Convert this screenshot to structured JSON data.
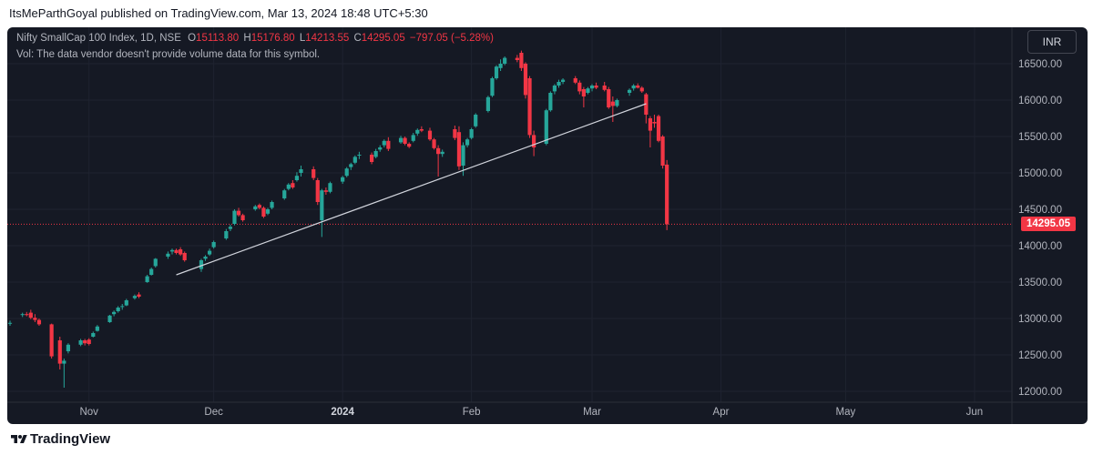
{
  "publisher": "ItsMeParthGoyal published on TradingView.com, Mar 13, 2024 18:48 UTC+5:30",
  "legend": {
    "symbol": "Nifty SmallCap 100 Index, 1D, NSE",
    "o_label": "O",
    "o_value": "15113.80",
    "h_label": "H",
    "h_value": "15176.80",
    "l_label": "L",
    "l_value": "14213.55",
    "c_label": "C",
    "c_value": "14295.05",
    "change": "−797.05 (−5.28%)"
  },
  "volume_note": "Vol: The data vendor doesn't provide volume data for this symbol.",
  "currency_button": "INR",
  "last_price_label": "14295.05",
  "brand": "TradingView",
  "colors": {
    "background": "#151924",
    "up": "#26a69a",
    "down": "#f23645",
    "grid": "#1f2330",
    "axis_text": "#b2b5be",
    "trendline": "#d1d4dc"
  },
  "chart_data": {
    "type": "candlestick",
    "title": "",
    "xlabel": "",
    "ylabel": "",
    "y_ticks": [
      12000,
      12500,
      13000,
      13500,
      14000,
      14500,
      15000,
      15500,
      16000,
      16500
    ],
    "y_tick_labels": [
      "12000.00",
      "12500.00",
      "13000.00",
      "13500.00",
      "14000.00",
      "14500.00",
      "15000.00",
      "15500.00",
      "16000.00",
      "16500.00"
    ],
    "ylim": [
      11900,
      16950
    ],
    "x_labels": [
      {
        "label": "Nov",
        "date": "2023-11-01"
      },
      {
        "label": "Dec",
        "date": "2023-12-01"
      },
      {
        "label": "2024",
        "date": "2024-01-01"
      },
      {
        "label": "Feb",
        "date": "2024-02-01"
      },
      {
        "label": "Mar",
        "date": "2024-03-01"
      },
      {
        "label": "Apr",
        "date": "2024-04-01"
      },
      {
        "label": "May",
        "date": "2024-05-01"
      },
      {
        "label": "Jun",
        "date": "2024-06-01"
      }
    ],
    "xlim": [
      "2023-10-13",
      "2024-06-10"
    ],
    "last_price": 14295.05,
    "trendline": {
      "start": {
        "date": "2023-11-22",
        "value": 13600
      },
      "end": {
        "date": "2024-03-14",
        "value": 15950
      }
    },
    "candles": [
      {
        "d": "2023-10-13",
        "o": 12930,
        "h": 12970,
        "l": 12900,
        "c": 12940
      },
      {
        "d": "2023-10-16",
        "o": 13050,
        "h": 13080,
        "l": 13020,
        "c": 13060
      },
      {
        "d": "2023-10-17",
        "o": 13060,
        "h": 13090,
        "l": 13030,
        "c": 13050
      },
      {
        "d": "2023-10-18",
        "o": 13080,
        "h": 13120,
        "l": 12990,
        "c": 13010
      },
      {
        "d": "2023-10-19",
        "o": 13010,
        "h": 13060,
        "l": 12950,
        "c": 12980
      },
      {
        "d": "2023-10-20",
        "o": 12980,
        "h": 13000,
        "l": 12900,
        "c": 12920
      },
      {
        "d": "2023-10-23",
        "o": 12920,
        "h": 12930,
        "l": 12450,
        "c": 12480
      },
      {
        "d": "2023-10-25",
        "o": 12700,
        "h": 12750,
        "l": 12300,
        "c": 12380
      },
      {
        "d": "2023-10-26",
        "o": 12380,
        "h": 12450,
        "l": 12050,
        "c": 12420
      },
      {
        "d": "2023-10-27",
        "o": 12550,
        "h": 12660,
        "l": 12520,
        "c": 12640
      },
      {
        "d": "2023-10-30",
        "o": 12640,
        "h": 12720,
        "l": 12620,
        "c": 12700
      },
      {
        "d": "2023-10-31",
        "o": 12700,
        "h": 12720,
        "l": 12630,
        "c": 12660
      },
      {
        "d": "2023-11-01",
        "o": 12710,
        "h": 12730,
        "l": 12630,
        "c": 12650
      },
      {
        "d": "2023-11-02",
        "o": 12750,
        "h": 12820,
        "l": 12740,
        "c": 12800
      },
      {
        "d": "2023-11-03",
        "o": 12830,
        "h": 12910,
        "l": 12820,
        "c": 12890
      },
      {
        "d": "2023-11-06",
        "o": 12950,
        "h": 13050,
        "l": 12940,
        "c": 13040
      },
      {
        "d": "2023-11-07",
        "o": 13060,
        "h": 13110,
        "l": 13030,
        "c": 13090
      },
      {
        "d": "2023-11-08",
        "o": 13100,
        "h": 13170,
        "l": 13080,
        "c": 13150
      },
      {
        "d": "2023-11-09",
        "o": 13160,
        "h": 13200,
        "l": 13120,
        "c": 13170
      },
      {
        "d": "2023-11-10",
        "o": 13180,
        "h": 13270,
        "l": 13170,
        "c": 13250
      },
      {
        "d": "2023-11-12",
        "o": 13280,
        "h": 13330,
        "l": 13260,
        "c": 13310
      },
      {
        "d": "2023-11-13",
        "o": 13330,
        "h": 13360,
        "l": 13280,
        "c": 13300
      },
      {
        "d": "2023-11-15",
        "o": 13500,
        "h": 13600,
        "l": 13490,
        "c": 13580
      },
      {
        "d": "2023-11-16",
        "o": 13600,
        "h": 13700,
        "l": 13590,
        "c": 13680
      },
      {
        "d": "2023-11-17",
        "o": 13720,
        "h": 13830,
        "l": 13700,
        "c": 13820
      },
      {
        "d": "2023-11-20",
        "o": 13850,
        "h": 13920,
        "l": 13820,
        "c": 13890
      },
      {
        "d": "2023-11-21",
        "o": 13920,
        "h": 13960,
        "l": 13880,
        "c": 13940
      },
      {
        "d": "2023-11-22",
        "o": 13940,
        "h": 13960,
        "l": 13880,
        "c": 13900
      },
      {
        "d": "2023-11-23",
        "o": 13950,
        "h": 13980,
        "l": 13860,
        "c": 13880
      },
      {
        "d": "2023-11-24",
        "o": 13900,
        "h": 13920,
        "l": 13780,
        "c": 13800
      },
      {
        "d": "2023-11-28",
        "o": 13680,
        "h": 13820,
        "l": 13640,
        "c": 13800
      },
      {
        "d": "2023-11-29",
        "o": 13820,
        "h": 13870,
        "l": 13790,
        "c": 13850
      },
      {
        "d": "2023-11-30",
        "o": 13880,
        "h": 13960,
        "l": 13860,
        "c": 13930
      },
      {
        "d": "2023-12-01",
        "o": 13980,
        "h": 14070,
        "l": 13960,
        "c": 14050
      },
      {
        "d": "2023-12-04",
        "o": 14100,
        "h": 14230,
        "l": 14080,
        "c": 14200
      },
      {
        "d": "2023-12-05",
        "o": 14230,
        "h": 14290,
        "l": 14200,
        "c": 14260
      },
      {
        "d": "2023-12-06",
        "o": 14300,
        "h": 14500,
        "l": 14280,
        "c": 14480
      },
      {
        "d": "2023-12-07",
        "o": 14480,
        "h": 14520,
        "l": 14400,
        "c": 14420
      },
      {
        "d": "2023-12-08",
        "o": 14420,
        "h": 14440,
        "l": 14330,
        "c": 14350
      },
      {
        "d": "2023-12-11",
        "o": 14500,
        "h": 14560,
        "l": 14480,
        "c": 14540
      },
      {
        "d": "2023-12-12",
        "o": 14560,
        "h": 14580,
        "l": 14500,
        "c": 14520
      },
      {
        "d": "2023-12-13",
        "o": 14520,
        "h": 14540,
        "l": 14380,
        "c": 14400
      },
      {
        "d": "2023-12-14",
        "o": 14440,
        "h": 14520,
        "l": 14420,
        "c": 14500
      },
      {
        "d": "2023-12-15",
        "o": 14520,
        "h": 14620,
        "l": 14500,
        "c": 14600
      },
      {
        "d": "2023-12-18",
        "o": 14650,
        "h": 14780,
        "l": 14630,
        "c": 14760
      },
      {
        "d": "2023-12-19",
        "o": 14780,
        "h": 14860,
        "l": 14760,
        "c": 14840
      },
      {
        "d": "2023-12-20",
        "o": 14860,
        "h": 14900,
        "l": 14780,
        "c": 14800
      },
      {
        "d": "2023-12-21",
        "o": 14900,
        "h": 15010,
        "l": 14880,
        "c": 14960
      },
      {
        "d": "2023-12-22",
        "o": 15000,
        "h": 15100,
        "l": 14950,
        "c": 15050
      },
      {
        "d": "2023-12-25",
        "o": 15050,
        "h": 15090,
        "l": 14900,
        "c": 14930
      },
      {
        "d": "2023-12-26",
        "o": 14900,
        "h": 14930,
        "l": 14560,
        "c": 14600
      },
      {
        "d": "2023-12-27",
        "o": 14350,
        "h": 14780,
        "l": 14120,
        "c": 14760
      },
      {
        "d": "2023-12-28",
        "o": 14760,
        "h": 14800,
        "l": 14700,
        "c": 14740
      },
      {
        "d": "2023-12-29",
        "o": 14740,
        "h": 14880,
        "l": 14720,
        "c": 14860
      },
      {
        "d": "2024-01-01",
        "o": 14880,
        "h": 14960,
        "l": 14850,
        "c": 14940
      },
      {
        "d": "2024-01-02",
        "o": 14960,
        "h": 15080,
        "l": 14940,
        "c": 15060
      },
      {
        "d": "2024-01-03",
        "o": 15080,
        "h": 15140,
        "l": 15040,
        "c": 15120
      },
      {
        "d": "2024-01-04",
        "o": 15140,
        "h": 15240,
        "l": 15120,
        "c": 15220
      },
      {
        "d": "2024-01-05",
        "o": 15240,
        "h": 15290,
        "l": 15190,
        "c": 15250
      },
      {
        "d": "2024-01-08",
        "o": 15250,
        "h": 15280,
        "l": 15120,
        "c": 15150
      },
      {
        "d": "2024-01-09",
        "o": 15220,
        "h": 15330,
        "l": 15200,
        "c": 15300
      },
      {
        "d": "2024-01-10",
        "o": 15320,
        "h": 15380,
        "l": 15290,
        "c": 15350
      },
      {
        "d": "2024-01-11",
        "o": 15380,
        "h": 15460,
        "l": 15350,
        "c": 15440
      },
      {
        "d": "2024-01-12",
        "o": 15440,
        "h": 15490,
        "l": 15300,
        "c": 15330
      },
      {
        "d": "2024-01-15",
        "o": 15420,
        "h": 15510,
        "l": 15400,
        "c": 15480
      },
      {
        "d": "2024-01-16",
        "o": 15480,
        "h": 15500,
        "l": 15380,
        "c": 15400
      },
      {
        "d": "2024-01-17",
        "o": 15400,
        "h": 15420,
        "l": 15340,
        "c": 15360
      },
      {
        "d": "2024-01-18",
        "o": 15440,
        "h": 15550,
        "l": 15420,
        "c": 15520
      },
      {
        "d": "2024-01-19",
        "o": 15540,
        "h": 15610,
        "l": 15510,
        "c": 15590
      },
      {
        "d": "2024-01-20",
        "o": 15600,
        "h": 15640,
        "l": 15560,
        "c": 15580
      },
      {
        "d": "2024-01-22",
        "o": 15580,
        "h": 15620,
        "l": 15440,
        "c": 15460
      },
      {
        "d": "2024-01-23",
        "o": 15460,
        "h": 15480,
        "l": 15320,
        "c": 15340
      },
      {
        "d": "2024-01-24",
        "o": 15340,
        "h": 15380,
        "l": 14950,
        "c": 15260
      },
      {
        "d": "2024-01-25",
        "o": 15260,
        "h": 15320,
        "l": 15220,
        "c": 15290
      },
      {
        "d": "2024-01-28",
        "o": 15600,
        "h": 15650,
        "l": 15450,
        "c": 15480
      },
      {
        "d": "2024-01-29",
        "o": 15560,
        "h": 15640,
        "l": 15040,
        "c": 15090
      },
      {
        "d": "2024-01-30",
        "o": 15100,
        "h": 15420,
        "l": 14960,
        "c": 15380
      },
      {
        "d": "2024-01-31",
        "o": 15380,
        "h": 15480,
        "l": 15350,
        "c": 15460
      },
      {
        "d": "2024-02-01",
        "o": 15480,
        "h": 15620,
        "l": 15460,
        "c": 15600
      },
      {
        "d": "2024-02-02",
        "o": 15640,
        "h": 15820,
        "l": 15620,
        "c": 15800
      },
      {
        "d": "2024-02-05",
        "o": 15850,
        "h": 16060,
        "l": 15830,
        "c": 16040
      },
      {
        "d": "2024-02-06",
        "o": 16060,
        "h": 16320,
        "l": 16040,
        "c": 16300
      },
      {
        "d": "2024-02-07",
        "o": 16300,
        "h": 16480,
        "l": 16280,
        "c": 16460
      },
      {
        "d": "2024-02-08",
        "o": 16440,
        "h": 16560,
        "l": 16400,
        "c": 16500
      },
      {
        "d": "2024-02-09",
        "o": 16500,
        "h": 16600,
        "l": 16480,
        "c": 16580
      },
      {
        "d": "2024-02-12",
        "o": 16580,
        "h": 16620,
        "l": 16520,
        "c": 16550
      },
      {
        "d": "2024-02-13",
        "o": 16650,
        "h": 16680,
        "l": 16400,
        "c": 16440
      },
      {
        "d": "2024-02-14",
        "o": 16500,
        "h": 16520,
        "l": 16020,
        "c": 16070
      },
      {
        "d": "2024-02-15",
        "o": 16300,
        "h": 16330,
        "l": 15480,
        "c": 15520
      },
      {
        "d": "2024-02-16",
        "o": 15520,
        "h": 15580,
        "l": 15230,
        "c": 15350
      },
      {
        "d": "2024-02-19",
        "o": 15400,
        "h": 15880,
        "l": 15380,
        "c": 15860
      },
      {
        "d": "2024-02-20",
        "o": 15860,
        "h": 16120,
        "l": 15840,
        "c": 16100
      },
      {
        "d": "2024-02-21",
        "o": 16120,
        "h": 16220,
        "l": 16080,
        "c": 16200
      },
      {
        "d": "2024-02-22",
        "o": 16200,
        "h": 16280,
        "l": 16170,
        "c": 16250
      },
      {
        "d": "2024-02-23",
        "o": 16250,
        "h": 16300,
        "l": 16220,
        "c": 16280
      },
      {
        "d": "2024-02-26",
        "o": 16300,
        "h": 16330,
        "l": 16220,
        "c": 16240
      },
      {
        "d": "2024-02-27",
        "o": 16240,
        "h": 16270,
        "l": 16080,
        "c": 16120
      },
      {
        "d": "2024-02-28",
        "o": 16150,
        "h": 16180,
        "l": 15900,
        "c": 16050
      },
      {
        "d": "2024-02-29",
        "o": 16100,
        "h": 16180,
        "l": 16080,
        "c": 16160
      },
      {
        "d": "2024-03-01",
        "o": 16160,
        "h": 16220,
        "l": 16120,
        "c": 16200
      },
      {
        "d": "2024-03-02",
        "o": 16200,
        "h": 16240,
        "l": 16150,
        "c": 16170
      },
      {
        "d": "2024-03-04",
        "o": 16200,
        "h": 16250,
        "l": 16120,
        "c": 16140
      },
      {
        "d": "2024-03-05",
        "o": 16150,
        "h": 16180,
        "l": 15880,
        "c": 15900
      },
      {
        "d": "2024-03-06",
        "o": 15980,
        "h": 16050,
        "l": 15700,
        "c": 15920
      },
      {
        "d": "2024-03-07",
        "o": 15920,
        "h": 16020,
        "l": 15900,
        "c": 16000
      },
      {
        "d": "2024-03-10",
        "o": 16100,
        "h": 16160,
        "l": 16060,
        "c": 16140
      },
      {
        "d": "2024-03-11",
        "o": 16160,
        "h": 16220,
        "l": 16130,
        "c": 16200
      },
      {
        "d": "2024-03-12",
        "o": 16200,
        "h": 16230,
        "l": 16160,
        "c": 16170
      },
      {
        "d": "2024-03-13",
        "o": 16170,
        "h": 16190,
        "l": 16100,
        "c": 16120
      },
      {
        "d": "2024-03-14",
        "o": 16080,
        "h": 16100,
        "l": 15680,
        "c": 15800
      },
      {
        "d": "2024-03-15",
        "o": 15750,
        "h": 15780,
        "l": 15350,
        "c": 15580
      },
      {
        "d": "2024-03-16",
        "o": 15700,
        "h": 15800,
        "l": 15620,
        "c": 15680
      },
      {
        "d": "2024-03-17",
        "o": 15780,
        "h": 15800,
        "l": 15420,
        "c": 15440
      },
      {
        "d": "2024-03-18",
        "o": 15500,
        "h": 15520,
        "l": 15060,
        "c": 15100
      },
      {
        "d": "2024-03-19",
        "o": 15113.8,
        "h": 15176.8,
        "l": 14213.55,
        "c": 14295.05
      }
    ]
  }
}
